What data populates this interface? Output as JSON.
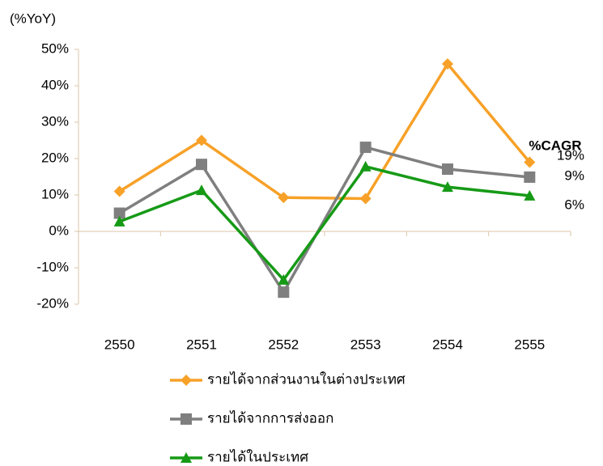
{
  "chart_data": {
    "type": "line",
    "y_label": "(%YoY)",
    "categories": [
      "2550",
      "2551",
      "2552",
      "2553",
      "2554",
      "2555"
    ],
    "series": [
      {
        "name": "รายได้จากส่วนงานในต่างประเทศ",
        "color": "#f7a128",
        "marker": "diamond",
        "values": [
          11,
          25,
          9.3,
          9,
          46,
          19
        ]
      },
      {
        "name": "รายได้จากการส่งออก",
        "color": "#7f7f7f",
        "marker": "square",
        "values": [
          5,
          18.4,
          -16.7,
          23.1,
          17.1,
          14.9
        ]
      },
      {
        "name": "รายได้ในประเทศ",
        "color": "#169a16",
        "marker": "triangle",
        "values": [
          2.7,
          11.3,
          -13.3,
          17.8,
          12.2,
          9.8
        ]
      }
    ],
    "ylim": [
      -20,
      50
    ],
    "yticks": [
      {
        "value": -20,
        "label": "-20%"
      },
      {
        "value": -10,
        "label": "-10%"
      },
      {
        "value": 0,
        "label": "0%"
      },
      {
        "value": 10,
        "label": "10%"
      },
      {
        "value": 20,
        "label": "20%"
      },
      {
        "value": 30,
        "label": "30%"
      },
      {
        "value": 40,
        "label": "40%"
      },
      {
        "value": 50,
        "label": "50%"
      }
    ],
    "annotations": [
      {
        "text": "%CAGR"
      },
      {
        "text": "19%"
      },
      {
        "text": "9%"
      },
      {
        "text": "6%"
      }
    ],
    "legend": "bottom"
  }
}
